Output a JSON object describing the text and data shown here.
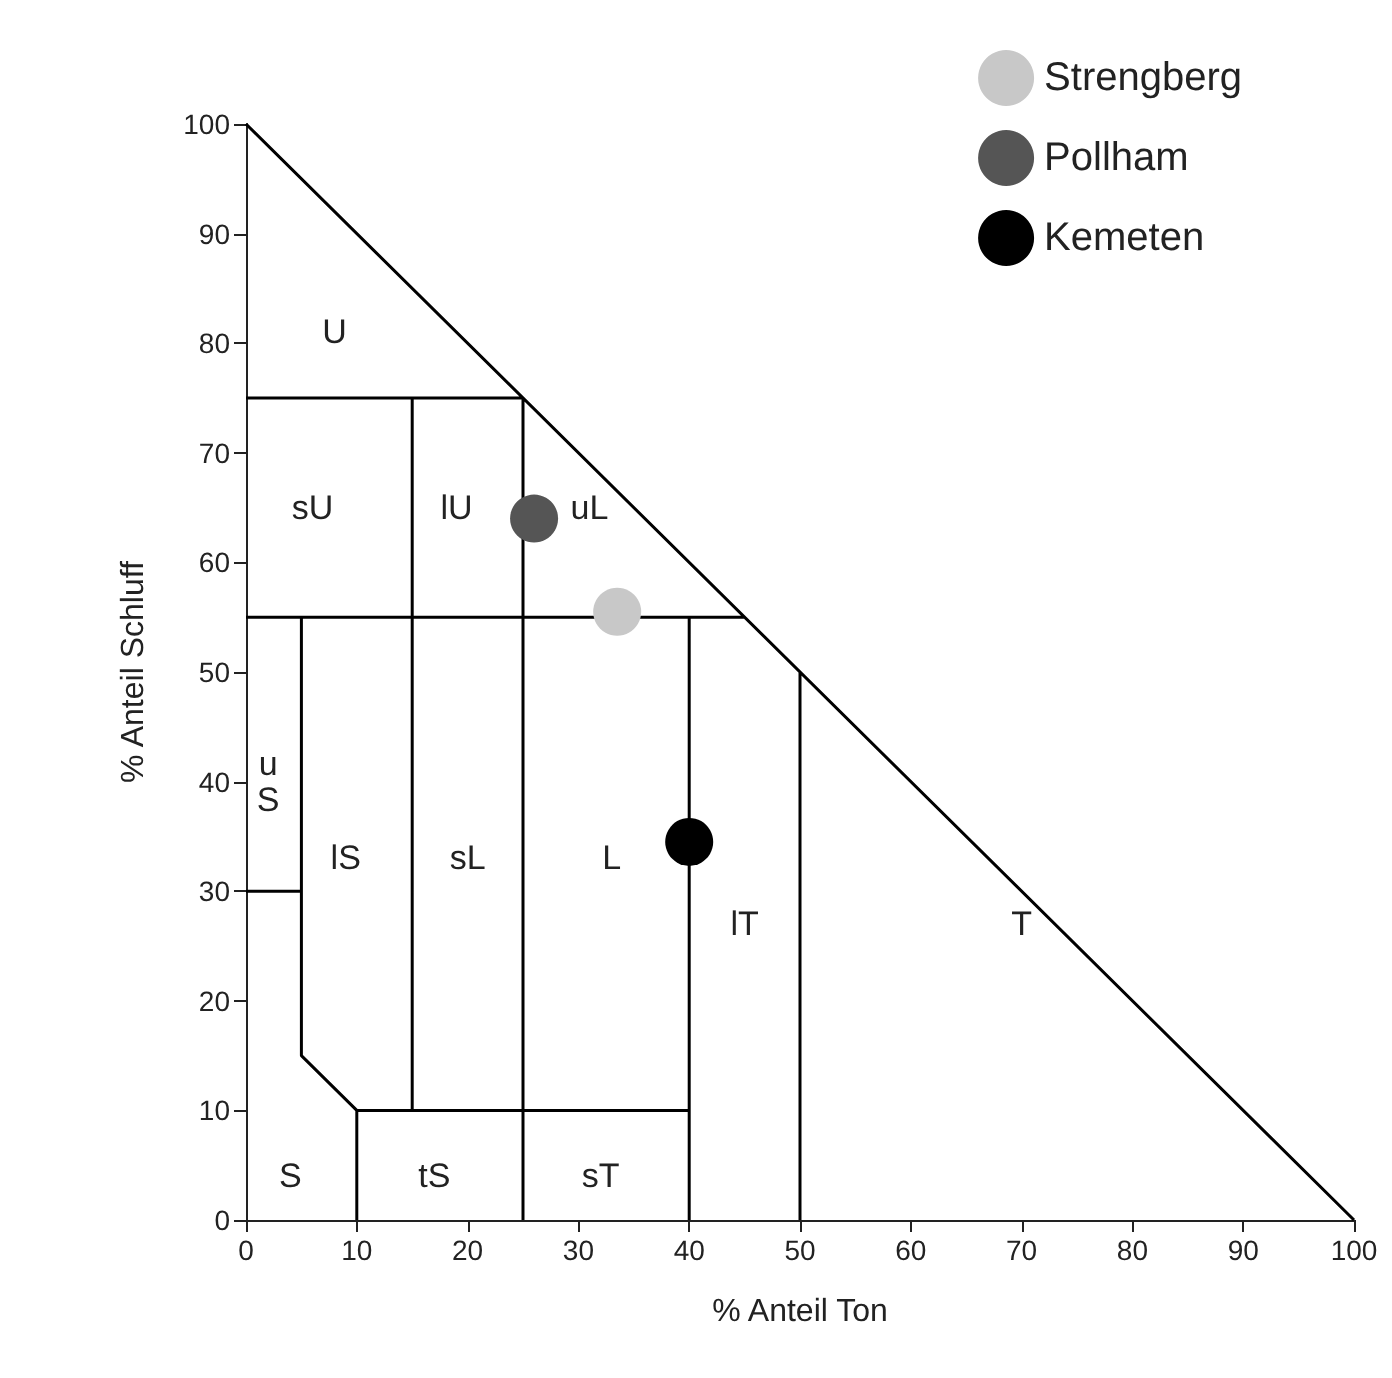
{
  "chart_data": {
    "type": "scatter",
    "xlabel": "% Anteil Ton",
    "ylabel": "% Anteil Schluff",
    "xlim": [
      0,
      100
    ],
    "ylim": [
      0,
      100
    ],
    "xticks": [
      0,
      10,
      20,
      30,
      40,
      50,
      60,
      70,
      80,
      90,
      100
    ],
    "yticks": [
      0,
      10,
      20,
      30,
      40,
      50,
      60,
      70,
      80,
      90,
      100
    ],
    "grid": false,
    "legend": "top right",
    "series": [
      {
        "type": "line",
        "color": "#000000",
        "x": [
          0,
          100,
          null,
          0,
          25,
          null,
          0,
          45,
          null,
          15,
          15,
          null,
          25,
          25,
          null,
          5,
          5,
          10,
          10,
          null,
          0,
          5,
          null,
          10,
          40,
          null,
          40,
          40,
          null,
          50,
          50
        ],
        "values": [
          100,
          0,
          null,
          75,
          75,
          null,
          55,
          55,
          null,
          10,
          75,
          null,
          0,
          75,
          null,
          55,
          15,
          10,
          0,
          null,
          30,
          30,
          null,
          10,
          10,
          null,
          0,
          55,
          null,
          0,
          50
        ]
      },
      {
        "name": "Strengberg",
        "color": "#c8c8c8",
        "marker": "circle",
        "x": [
          33.5
        ],
        "values": [
          55.5
        ]
      },
      {
        "name": "Pollham",
        "color": "#555555",
        "marker": "circle",
        "x": [
          26
        ],
        "values": [
          64
        ]
      },
      {
        "name": "Kemeten",
        "color": "#000000",
        "marker": "circle",
        "x": [
          40
        ],
        "values": [
          34.5
        ]
      }
    ],
    "annotations": [
      "U",
      "sU",
      "lU",
      "uL",
      "u\nS",
      "lS",
      "sL",
      "L",
      "lT",
      "T",
      "S",
      "tS",
      "sT"
    ]
  }
}
